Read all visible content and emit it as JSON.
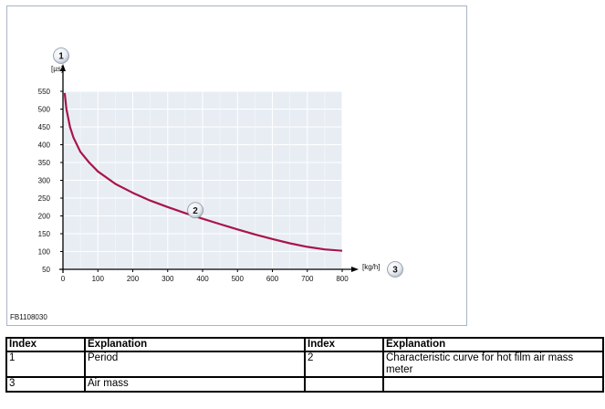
{
  "figure": {
    "id_label": "FB1108030"
  },
  "chart_data": {
    "type": "line",
    "xlabel": "[kg/h]",
    "ylabel": "[µs]",
    "xlim": [
      0,
      800
    ],
    "ylim": [
      50,
      550
    ],
    "x_ticks": [
      0,
      100,
      200,
      300,
      400,
      500,
      600,
      700,
      800
    ],
    "y_ticks": [
      50,
      100,
      150,
      200,
      250,
      300,
      350,
      400,
      450,
      500,
      550
    ],
    "grid": true,
    "callouts": [
      {
        "label": "1",
        "target": "y-axis"
      },
      {
        "label": "2",
        "target": "curve"
      },
      {
        "label": "3",
        "target": "x-axis"
      }
    ],
    "series": [
      {
        "color": "#a8154a",
        "x": [
          5,
          10,
          20,
          30,
          50,
          75,
          100,
          150,
          200,
          250,
          300,
          350,
          400,
          450,
          500,
          550,
          600,
          650,
          700,
          750,
          800
        ],
        "y": [
          545,
          500,
          450,
          420,
          380,
          350,
          325,
          290,
          265,
          243,
          225,
          208,
          192,
          177,
          162,
          148,
          135,
          123,
          113,
          106,
          102
        ]
      }
    ]
  },
  "legend_table": {
    "headers": [
      "Index",
      "Explanation",
      "Index",
      "Explanation"
    ],
    "rows": [
      [
        "1",
        "Period",
        "2",
        "Characteristic curve for hot film air mass meter"
      ],
      [
        "3",
        "Air mass",
        "",
        ""
      ]
    ]
  }
}
